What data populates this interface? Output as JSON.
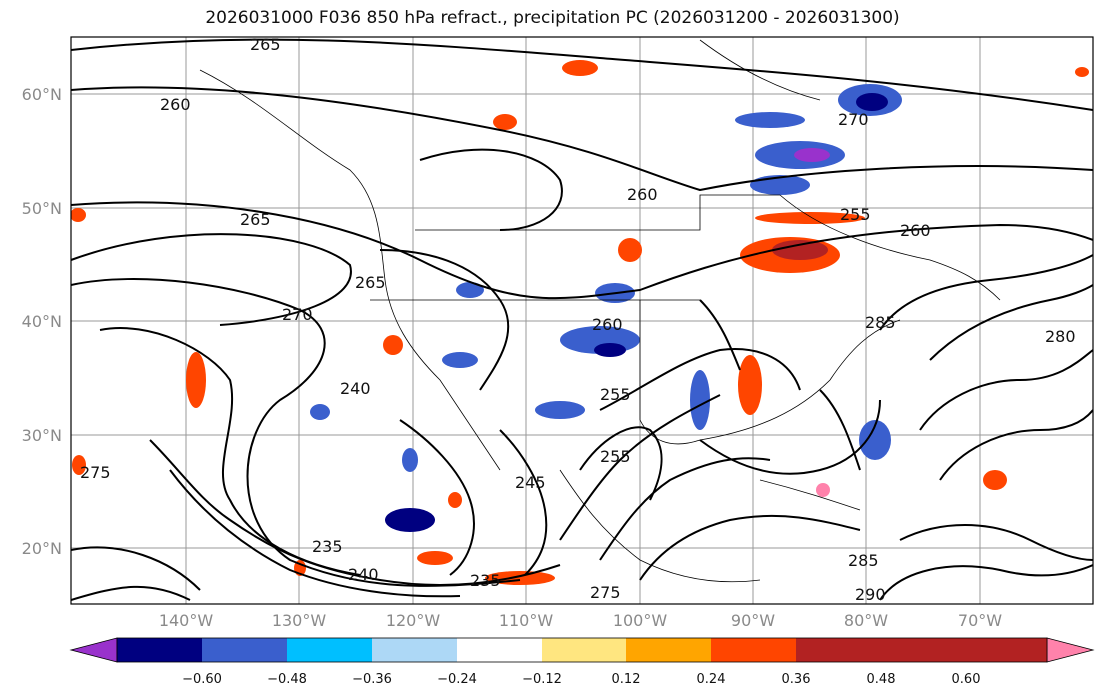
{
  "title": "2026031000 F036 850 hPa refract., precipitation PC (2026031200 - 2026031300)",
  "map": {
    "lat_labels": [
      "60°N",
      "50°N",
      "40°N",
      "30°N",
      "20°N"
    ],
    "lon_labels": [
      "140°W",
      "130°W",
      "120°W",
      "110°W",
      "100°W",
      "90°W",
      "80°W",
      "70°W"
    ],
    "contour_labels": [
      "265",
      "260",
      "265",
      "270",
      "240",
      "235",
      "240",
      "235",
      "255",
      "260",
      "255",
      "260",
      "270",
      "285",
      "275",
      "280",
      "245",
      "275",
      "285",
      "290",
      "265",
      "260",
      "255"
    ],
    "contour_color": "#000000",
    "gridline_color": "#999999"
  },
  "colorbar": {
    "tick_labels": [
      "−0.60",
      "−0.48",
      "−0.36",
      "−0.24",
      "−0.12",
      "0.12",
      "0.24",
      "0.36",
      "0.48",
      "0.60"
    ],
    "colors": [
      "#9932cc",
      "#000080",
      "#3a5fcd",
      "#00bfff",
      "#add8f6",
      "#ffffff",
      "#ffe680",
      "#ffa500",
      "#ff4500",
      "#b22222",
      "#ff82ab"
    ]
  }
}
